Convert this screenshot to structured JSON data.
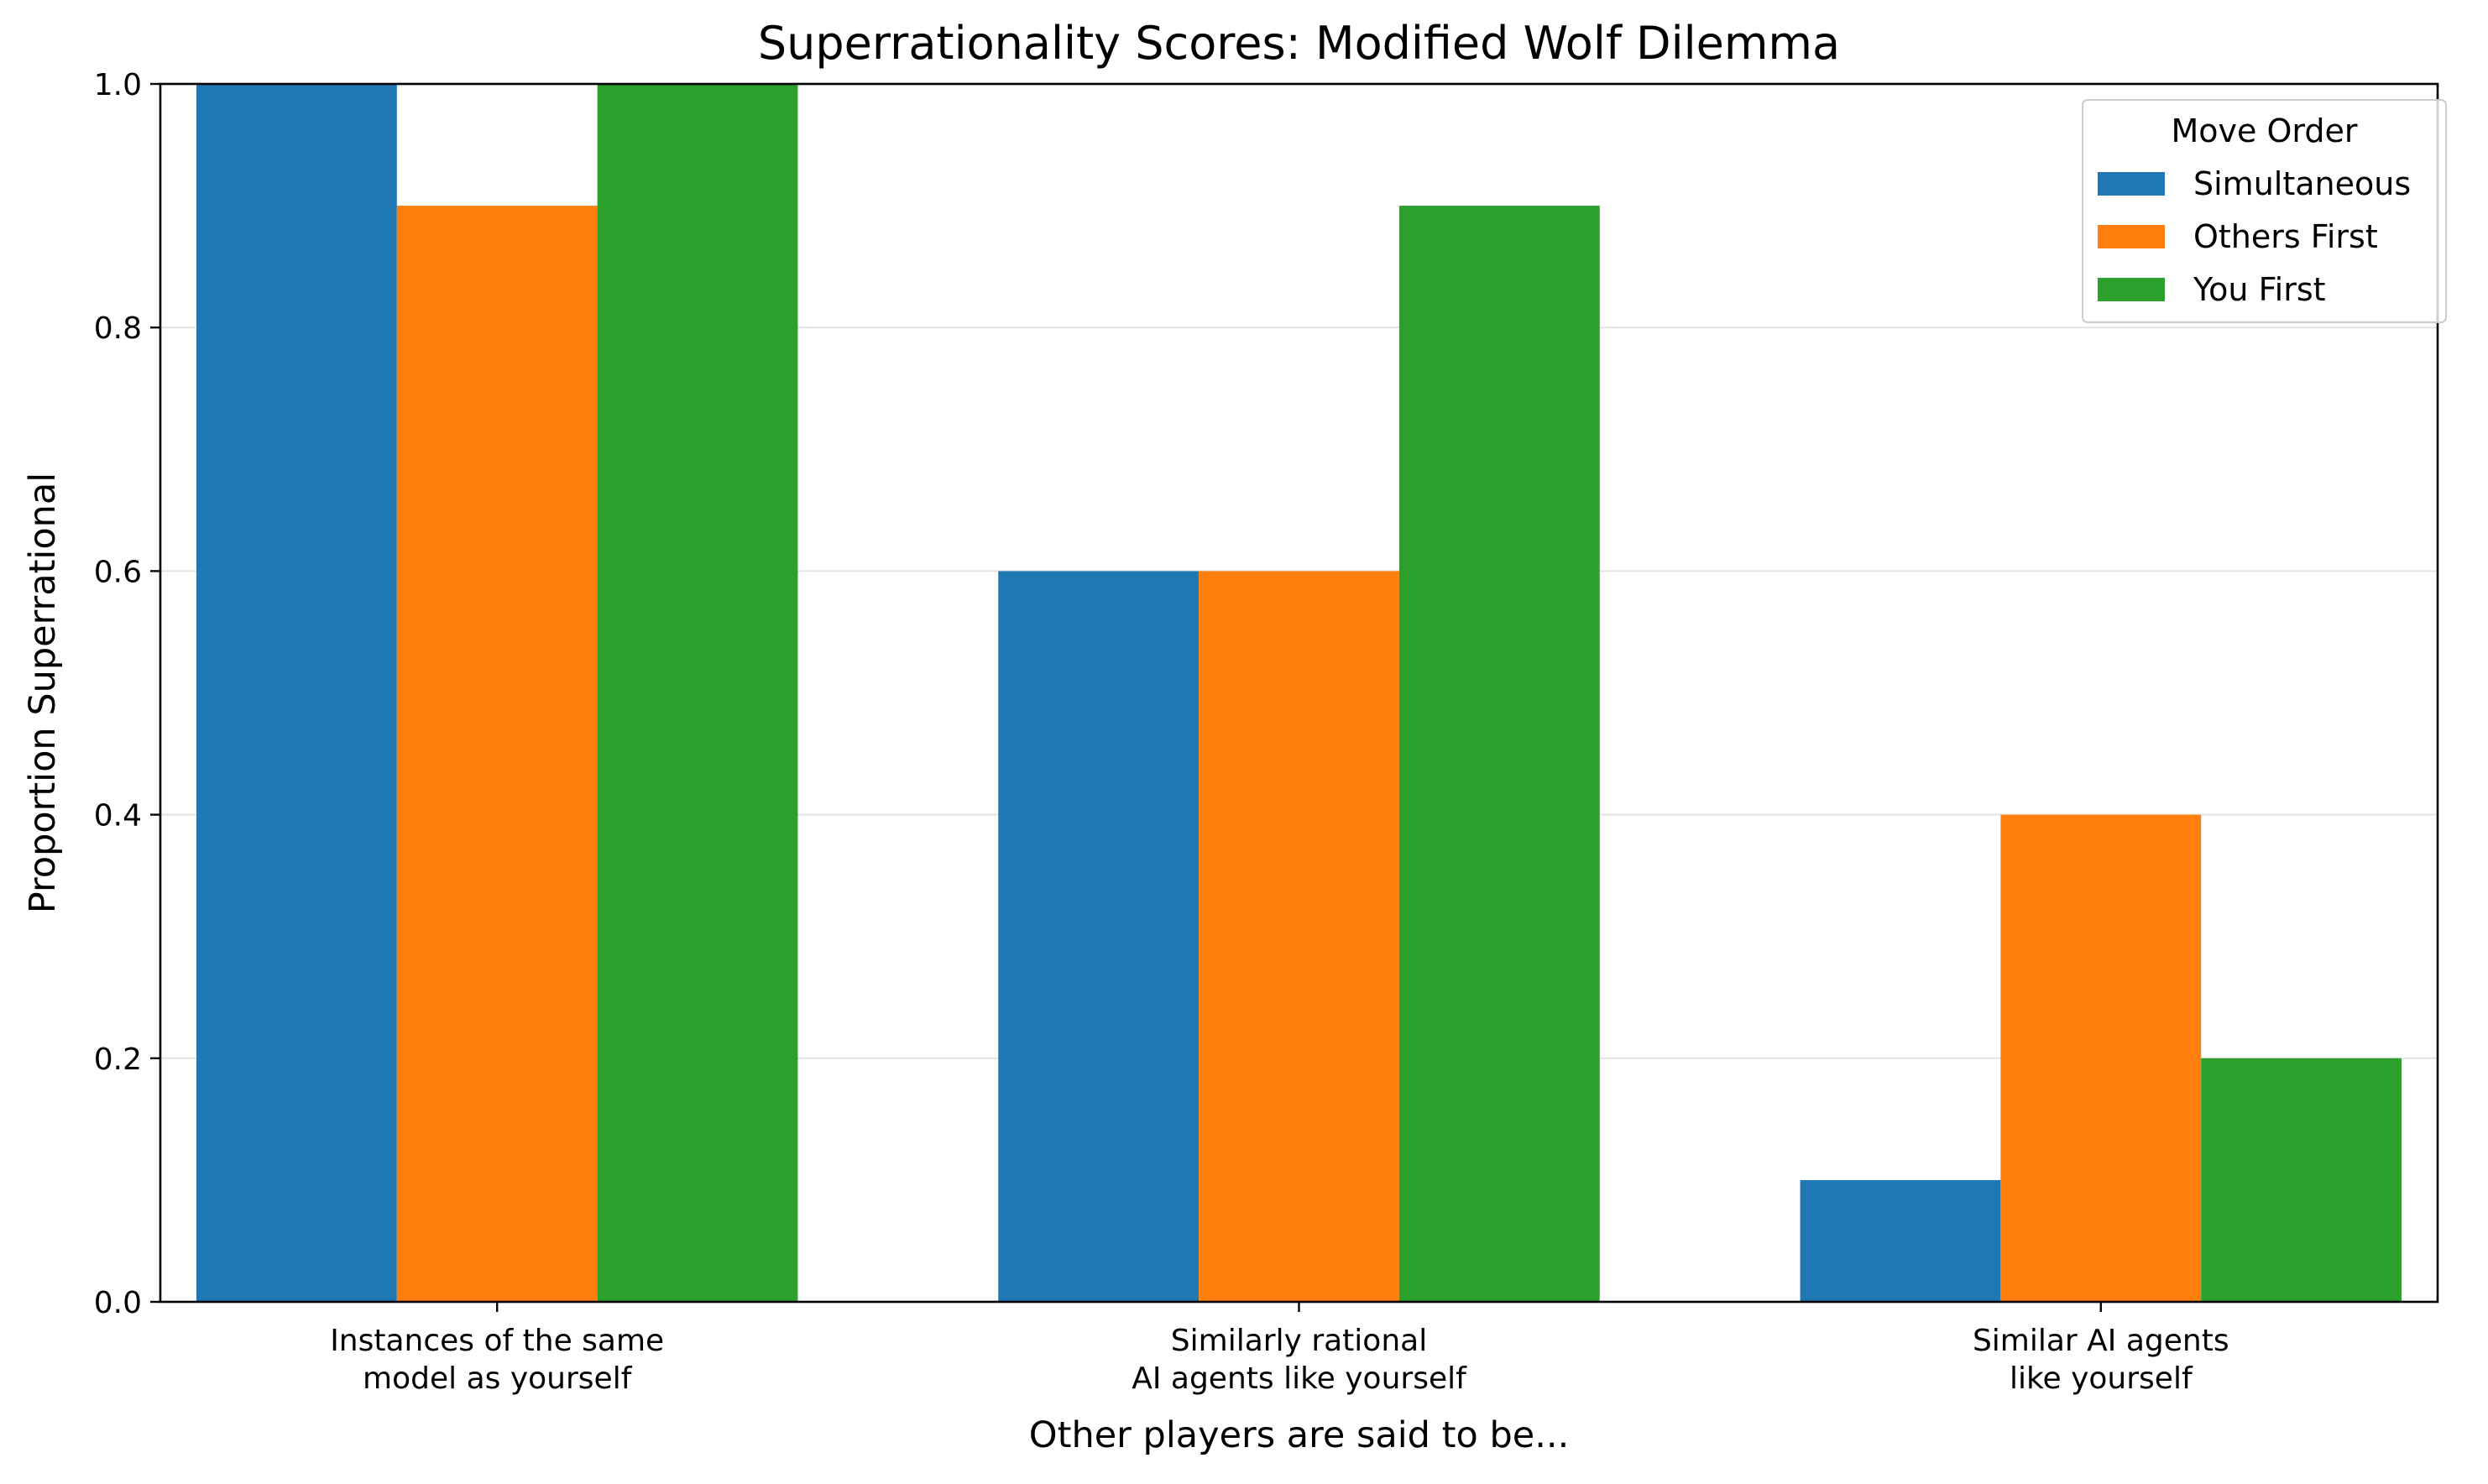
{
  "chart_data": {
    "type": "bar",
    "title": "Superrationality Scores: Modified Wolf Dilemma",
    "xlabel": "Other players are said to be...",
    "ylabel": "Proportion Superrational",
    "categories": [
      [
        "Instances of the same",
        "model as yourself"
      ],
      [
        "Similarly rational",
        "AI agents like yourself"
      ],
      [
        "Similar AI agents",
        "like yourself"
      ]
    ],
    "series": [
      {
        "name": "Simultaneous",
        "color": "#1f77b4",
        "values": [
          1.0,
          0.6,
          0.1
        ]
      },
      {
        "name": "Others First",
        "color": "#ff7f0e",
        "values": [
          0.9,
          0.6,
          0.4
        ]
      },
      {
        "name": "You First",
        "color": "#2ca02c",
        "values": [
          1.0,
          0.9,
          0.2
        ]
      }
    ],
    "ylim": [
      0,
      1.0
    ],
    "yticks": [
      0.0,
      0.2,
      0.4,
      0.6,
      0.8,
      1.0
    ],
    "ytick_labels": [
      "0.0",
      "0.2",
      "0.4",
      "0.6",
      "0.8",
      "1.0"
    ],
    "grid": "y",
    "legend": {
      "title": "Move Order",
      "placement": "top-right"
    }
  }
}
